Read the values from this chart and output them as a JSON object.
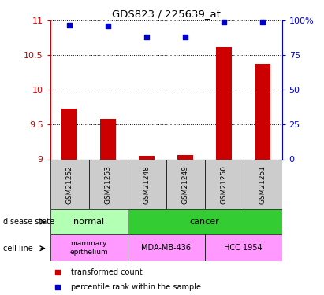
{
  "title": "GDS823 / 225639_at",
  "samples": [
    "GSM21252",
    "GSM21253",
    "GSM21248",
    "GSM21249",
    "GSM21250",
    "GSM21251"
  ],
  "transformed_counts": [
    9.73,
    9.58,
    9.05,
    9.06,
    10.62,
    10.38
  ],
  "percentile_ranks": [
    97,
    96,
    88,
    88,
    99,
    99
  ],
  "ylim_left": [
    9.0,
    11.0
  ],
  "ylim_right": [
    0,
    100
  ],
  "yticks_left": [
    9.0,
    9.5,
    10.0,
    10.5,
    11.0
  ],
  "yticks_right": [
    0,
    25,
    50,
    75,
    100
  ],
  "yticklabels_right": [
    "0",
    "25",
    "50",
    "75",
    "100%"
  ],
  "bar_color": "#cc0000",
  "dot_color": "#0000cc",
  "disease_colors": {
    "normal": "#b3ffb3",
    "cancer": "#33cc33"
  },
  "cell_line_color": "#ff99ff",
  "sample_bg_color": "#cccccc",
  "label_color_left": "#cc0000",
  "label_color_right": "#0000cc"
}
